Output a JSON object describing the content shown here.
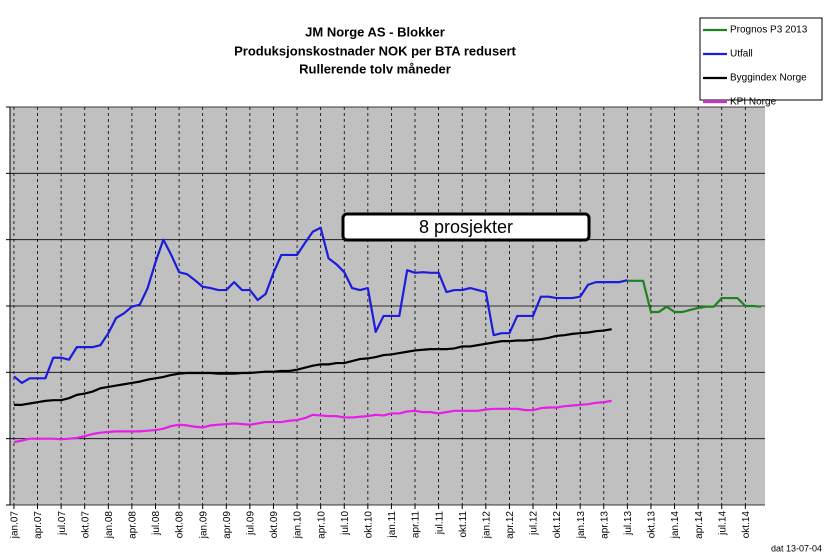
{
  "chart_data": {
    "type": "line",
    "title": [
      "JM Norge AS - Blokker",
      "Produksjonskostnader  NOK per BTA redusert",
      "Rullerende tolv måneder"
    ],
    "annotation": "8 prosjekter",
    "footer": "dat 13-07-04",
    "categories": [
      "jan.07",
      null,
      null,
      "apr.07",
      null,
      null,
      "jul.07",
      null,
      null,
      "okt.07",
      null,
      null,
      "jan.08",
      null,
      null,
      "apr.08",
      null,
      null,
      "jul.08",
      null,
      null,
      "okt.08",
      null,
      null,
      "jan.09",
      null,
      null,
      "apr.09",
      null,
      null,
      "jul.09",
      null,
      null,
      "okt.09",
      null,
      null,
      "jan.10",
      null,
      null,
      "apr.10",
      null,
      null,
      "jul.10",
      null,
      null,
      "okt.10",
      null,
      null,
      "jan.11",
      null,
      null,
      "apr.11",
      null,
      null,
      "jul.11",
      null,
      null,
      "okt.11",
      null,
      null,
      "jan.12",
      null,
      null,
      "apr.12",
      null,
      null,
      "jul.12",
      null,
      null,
      "okt.12",
      null,
      null,
      "jan.13",
      null,
      null,
      "apr.13",
      null,
      null,
      "jul.13",
      null,
      null,
      "okt.13",
      null,
      null,
      "jan.14",
      null,
      null,
      "apr.14",
      null,
      null,
      "jul.14",
      null,
      null,
      "okt.14",
      null,
      null
    ],
    "series": [
      {
        "name": "Prognos P3 2013",
        "color": "#1e821e",
        "values": [
          null,
          null,
          null,
          null,
          null,
          null,
          null,
          null,
          null,
          null,
          null,
          null,
          null,
          null,
          null,
          null,
          null,
          null,
          null,
          null,
          null,
          null,
          null,
          null,
          null,
          null,
          null,
          null,
          null,
          null,
          null,
          null,
          null,
          null,
          null,
          null,
          null,
          null,
          null,
          null,
          null,
          null,
          null,
          null,
          null,
          null,
          null,
          null,
          null,
          null,
          null,
          null,
          null,
          null,
          null,
          null,
          null,
          null,
          null,
          null,
          null,
          null,
          null,
          null,
          null,
          null,
          null,
          null,
          null,
          null,
          null,
          null,
          null,
          null,
          null,
          null,
          null,
          null,
          3.38,
          3.38,
          3.38,
          2.91,
          2.91,
          2.99,
          2.91,
          2.91,
          2.94,
          2.97,
          2.99,
          2.99,
          3.12,
          3.12,
          3.12,
          3.0,
          3.0,
          2.99
        ]
      },
      {
        "name": "Utfall",
        "color": "#1c1cdc",
        "values": [
          1.94,
          1.84,
          1.91,
          1.91,
          1.91,
          2.22,
          2.22,
          2.19,
          2.38,
          2.38,
          2.38,
          2.41,
          2.59,
          2.82,
          2.89,
          2.99,
          3.02,
          3.27,
          3.66,
          4.0,
          3.77,
          3.51,
          3.48,
          3.39,
          3.29,
          3.27,
          3.24,
          3.24,
          3.36,
          3.24,
          3.24,
          3.09,
          3.18,
          3.5,
          3.77,
          3.77,
          3.77,
          3.95,
          4.12,
          4.18,
          3.72,
          3.63,
          3.51,
          3.27,
          3.24,
          3.27,
          2.61,
          2.85,
          2.85,
          2.85,
          3.54,
          3.5,
          3.51,
          3.5,
          3.5,
          3.21,
          3.24,
          3.24,
          3.27,
          3.24,
          3.21,
          2.56,
          2.59,
          2.59,
          2.85,
          2.85,
          2.85,
          3.14,
          3.14,
          3.12,
          3.12,
          3.12,
          3.14,
          3.32,
          3.36,
          3.36,
          3.36,
          3.36,
          3.39,
          null,
          null,
          null,
          null,
          null,
          null,
          null,
          null,
          null,
          null,
          null,
          null,
          null,
          null,
          null,
          null,
          null
        ]
      },
      {
        "name": "Byggindex Norge",
        "color": "#000000",
        "values": [
          1.51,
          1.51,
          1.53,
          1.55,
          1.57,
          1.58,
          1.58,
          1.61,
          1.66,
          1.68,
          1.71,
          1.76,
          1.78,
          1.8,
          1.82,
          1.84,
          1.86,
          1.89,
          1.91,
          1.93,
          1.96,
          1.98,
          1.99,
          1.99,
          1.99,
          1.99,
          1.98,
          1.98,
          1.98,
          1.99,
          1.99,
          2.0,
          2.01,
          2.01,
          2.02,
          2.02,
          2.04,
          2.07,
          2.1,
          2.12,
          2.12,
          2.14,
          2.14,
          2.17,
          2.2,
          2.21,
          2.23,
          2.26,
          2.27,
          2.29,
          2.31,
          2.33,
          2.34,
          2.35,
          2.35,
          2.35,
          2.36,
          2.39,
          2.39,
          2.41,
          2.43,
          2.45,
          2.47,
          2.47,
          2.48,
          2.48,
          2.49,
          2.5,
          2.52,
          2.55,
          2.56,
          2.58,
          2.59,
          2.6,
          2.62,
          2.63,
          2.65,
          null,
          null,
          null,
          null,
          null,
          null,
          null,
          null,
          null,
          null,
          null,
          null,
          null,
          null,
          null,
          null,
          null,
          null,
          null
        ]
      },
      {
        "name": "KPI Norge",
        "color": "#e61ee6",
        "values": [
          0.95,
          0.97,
          1.0,
          1.0,
          1.0,
          1.0,
          0.99,
          1.0,
          1.01,
          1.04,
          1.07,
          1.09,
          1.1,
          1.11,
          1.11,
          1.11,
          1.11,
          1.12,
          1.13,
          1.15,
          1.19,
          1.21,
          1.2,
          1.18,
          1.17,
          1.2,
          1.21,
          1.22,
          1.23,
          1.22,
          1.21,
          1.23,
          1.25,
          1.25,
          1.25,
          1.27,
          1.28,
          1.31,
          1.36,
          1.35,
          1.34,
          1.34,
          1.32,
          1.32,
          1.33,
          1.34,
          1.36,
          1.35,
          1.38,
          1.38,
          1.41,
          1.42,
          1.4,
          1.4,
          1.38,
          1.4,
          1.42,
          1.42,
          1.42,
          1.42,
          1.44,
          1.45,
          1.45,
          1.45,
          1.45,
          1.43,
          1.43,
          1.46,
          1.47,
          1.47,
          1.49,
          1.5,
          1.51,
          1.52,
          1.54,
          1.55,
          1.57,
          null,
          null,
          null,
          null,
          null,
          null,
          null,
          null,
          null,
          null,
          null,
          null,
          null,
          null,
          null,
          null,
          null,
          null,
          null
        ]
      }
    ],
    "ylim": [
      0,
      6
    ],
    "yticks": [
      0,
      1,
      2,
      3,
      4,
      5,
      6
    ],
    "ytick_labels": false,
    "grid": true,
    "plot_background": "#c0c0c0",
    "legend": "top-right"
  }
}
